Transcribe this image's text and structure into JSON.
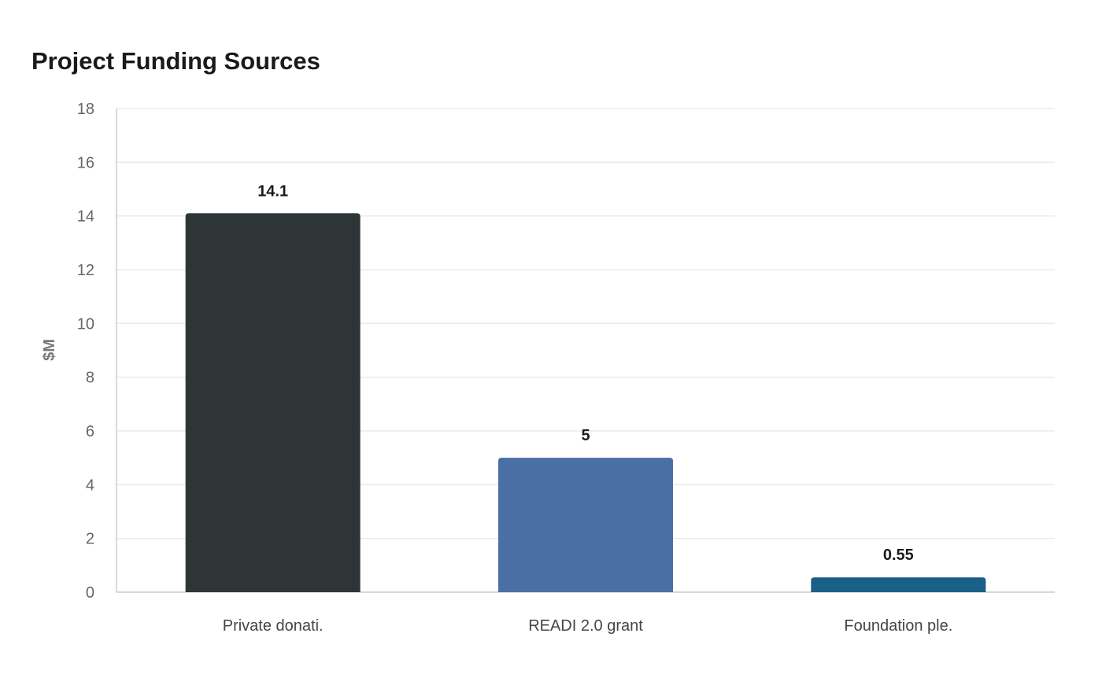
{
  "chart_data": {
    "type": "bar",
    "title": "Project Funding Sources",
    "xlabel": "",
    "ylabel": "$M",
    "categories": [
      "Private donati.",
      "READI 2.0 grant",
      "Foundation ple."
    ],
    "values": [
      14.1,
      5,
      0.55
    ],
    "data_labels": [
      "14.1",
      "5",
      "0.55"
    ],
    "colors": [
      "#2e3537",
      "#4a6fa5",
      "#1a5f85"
    ],
    "ylim": [
      0,
      18
    ],
    "yticks": [
      0,
      2,
      4,
      6,
      8,
      10,
      12,
      14,
      16,
      18
    ],
    "grid": true,
    "legend": "none"
  }
}
